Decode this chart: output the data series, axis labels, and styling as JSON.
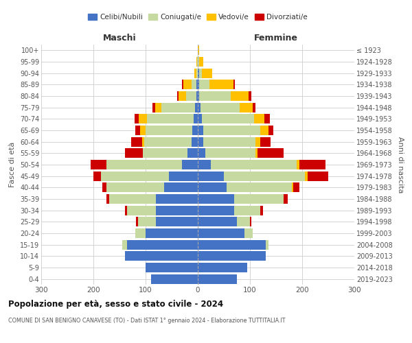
{
  "age_groups": [
    "0-4",
    "5-9",
    "10-14",
    "15-19",
    "20-24",
    "25-29",
    "30-34",
    "35-39",
    "40-44",
    "45-49",
    "50-54",
    "55-59",
    "60-64",
    "65-69",
    "70-74",
    "75-79",
    "80-84",
    "85-89",
    "90-94",
    "95-99",
    "100+"
  ],
  "birth_years": [
    "2019-2023",
    "2014-2018",
    "2009-2013",
    "2004-2008",
    "1999-2003",
    "1994-1998",
    "1989-1993",
    "1984-1988",
    "1979-1983",
    "1974-1978",
    "1969-1973",
    "1964-1968",
    "1959-1963",
    "1954-1958",
    "1949-1953",
    "1944-1948",
    "1939-1943",
    "1934-1938",
    "1929-1933",
    "1924-1928",
    "≤ 1923"
  ],
  "colors": {
    "celibi": "#4472c4",
    "coniugati": "#c5d9a0",
    "vedovi": "#ffc000",
    "divorziati": "#cc0000"
  },
  "males": {
    "celibi": [
      90,
      100,
      140,
      135,
      100,
      80,
      80,
      80,
      65,
      55,
      30,
      20,
      12,
      10,
      8,
      5,
      2,
      2,
      0,
      0,
      0
    ],
    "coniugati": [
      0,
      0,
      0,
      10,
      20,
      35,
      55,
      90,
      110,
      130,
      145,
      85,
      90,
      90,
      90,
      65,
      20,
      10,
      3,
      1,
      0
    ],
    "vedovi": [
      0,
      0,
      0,
      0,
      0,
      0,
      0,
      0,
      0,
      0,
      0,
      0,
      5,
      10,
      15,
      12,
      15,
      15,
      3,
      1,
      0
    ],
    "divorziati": [
      0,
      0,
      0,
      0,
      0,
      3,
      5,
      5,
      8,
      15,
      30,
      35,
      20,
      10,
      8,
      5,
      3,
      3,
      0,
      0,
      0
    ]
  },
  "females": {
    "celibi": [
      75,
      95,
      130,
      130,
      90,
      75,
      70,
      70,
      55,
      50,
      25,
      15,
      10,
      10,
      8,
      5,
      3,
      3,
      3,
      0,
      0
    ],
    "coniugati": [
      0,
      0,
      0,
      5,
      15,
      25,
      50,
      95,
      125,
      155,
      165,
      95,
      100,
      110,
      100,
      75,
      60,
      20,
      5,
      3,
      0
    ],
    "vedovi": [
      0,
      0,
      0,
      0,
      0,
      0,
      0,
      0,
      3,
      5,
      5,
      5,
      10,
      15,
      20,
      25,
      35,
      45,
      20,
      8,
      3
    ],
    "divorziati": [
      0,
      0,
      0,
      0,
      0,
      3,
      5,
      8,
      12,
      40,
      50,
      50,
      20,
      10,
      10,
      5,
      5,
      3,
      0,
      0,
      0
    ]
  },
  "title": "Popolazione per età, sesso e stato civile - 2024",
  "subtitle": "COMUNE DI SAN BENIGNO CANAVESE (TO) - Dati ISTAT 1° gennaio 2024 - Elaborazione TUTTITALIA.IT",
  "xlabel_left": "Maschi",
  "xlabel_right": "Femmine",
  "ylabel_left": "Fasce di età",
  "ylabel_right": "Anni di nascita",
  "xlim": 300,
  "background_color": "#ffffff",
  "grid_color": "#cccccc",
  "legend_labels": [
    "Celibi/Nubili",
    "Coniugati/e",
    "Vedovi/e",
    "Divorziati/e"
  ]
}
